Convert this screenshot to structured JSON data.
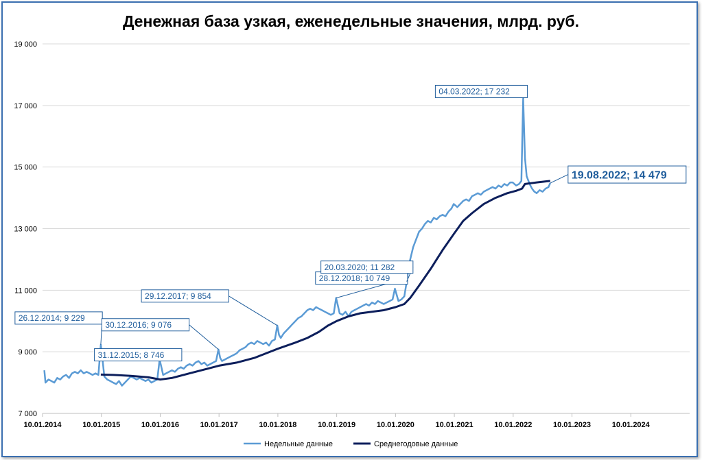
{
  "chart_data": {
    "type": "line",
    "title": "Денежная база узкая, еженедельные значения, млрд. руб.",
    "xlabel": "",
    "ylabel": "",
    "ylim": [
      7000,
      19000
    ],
    "yticks": [
      "7 000",
      "9 000",
      "11 000",
      "13 000",
      "15 000",
      "17 000",
      "19 000"
    ],
    "xticks": [
      "10.01.2014",
      "10.01.2015",
      "10.01.2016",
      "10.01.2017",
      "10.01.2018",
      "10.01.2019",
      "10.01.2020",
      "10.01.2021",
      "10.01.2022",
      "10.01.2023",
      "10.01.2024"
    ],
    "grid": true,
    "legend_position": "bottom",
    "series": [
      {
        "name": "Недельные данные",
        "color": "#5b9bd5",
        "points": [
          [
            2014.03,
            8400
          ],
          [
            2014.05,
            8000
          ],
          [
            2014.1,
            8100
          ],
          [
            2014.15,
            8050
          ],
          [
            2014.2,
            8000
          ],
          [
            2014.25,
            8150
          ],
          [
            2014.3,
            8100
          ],
          [
            2014.35,
            8200
          ],
          [
            2014.4,
            8250
          ],
          [
            2014.45,
            8150
          ],
          [
            2014.5,
            8300
          ],
          [
            2014.55,
            8350
          ],
          [
            2014.6,
            8300
          ],
          [
            2014.65,
            8400
          ],
          [
            2014.7,
            8300
          ],
          [
            2014.75,
            8350
          ],
          [
            2014.8,
            8300
          ],
          [
            2014.85,
            8250
          ],
          [
            2014.9,
            8300
          ],
          [
            2014.95,
            8250
          ],
          [
            2014.99,
            9229
          ],
          [
            2015.02,
            8750
          ],
          [
            2015.05,
            8200
          ],
          [
            2015.1,
            8100
          ],
          [
            2015.15,
            8050
          ],
          [
            2015.2,
            8000
          ],
          [
            2015.25,
            7950
          ],
          [
            2015.3,
            8050
          ],
          [
            2015.35,
            7900
          ],
          [
            2015.4,
            8000
          ],
          [
            2015.45,
            8100
          ],
          [
            2015.5,
            8200
          ],
          [
            2015.55,
            8150
          ],
          [
            2015.6,
            8100
          ],
          [
            2015.65,
            8150
          ],
          [
            2015.7,
            8100
          ],
          [
            2015.75,
            8050
          ],
          [
            2015.8,
            8100
          ],
          [
            2015.85,
            8000
          ],
          [
            2015.9,
            8050
          ],
          [
            2015.95,
            8100
          ],
          [
            2015.99,
            8746
          ],
          [
            2016.02,
            8500
          ],
          [
            2016.05,
            8250
          ],
          [
            2016.1,
            8300
          ],
          [
            2016.15,
            8350
          ],
          [
            2016.2,
            8400
          ],
          [
            2016.25,
            8350
          ],
          [
            2016.3,
            8450
          ],
          [
            2016.35,
            8500
          ],
          [
            2016.4,
            8450
          ],
          [
            2016.45,
            8550
          ],
          [
            2016.5,
            8600
          ],
          [
            2016.55,
            8550
          ],
          [
            2016.6,
            8650
          ],
          [
            2016.65,
            8700
          ],
          [
            2016.7,
            8600
          ],
          [
            2016.75,
            8650
          ],
          [
            2016.8,
            8550
          ],
          [
            2016.85,
            8600
          ],
          [
            2016.9,
            8650
          ],
          [
            2016.95,
            8700
          ],
          [
            2016.99,
            9076
          ],
          [
            2017.02,
            8800
          ],
          [
            2017.05,
            8700
          ],
          [
            2017.1,
            8750
          ],
          [
            2017.15,
            8800
          ],
          [
            2017.2,
            8850
          ],
          [
            2017.25,
            8900
          ],
          [
            2017.3,
            8950
          ],
          [
            2017.35,
            9050
          ],
          [
            2017.4,
            9100
          ],
          [
            2017.45,
            9150
          ],
          [
            2017.5,
            9250
          ],
          [
            2017.55,
            9300
          ],
          [
            2017.6,
            9250
          ],
          [
            2017.65,
            9350
          ],
          [
            2017.7,
            9300
          ],
          [
            2017.75,
            9250
          ],
          [
            2017.8,
            9300
          ],
          [
            2017.85,
            9200
          ],
          [
            2017.9,
            9350
          ],
          [
            2017.95,
            9400
          ],
          [
            2017.99,
            9854
          ],
          [
            2018.02,
            9550
          ],
          [
            2018.05,
            9450
          ],
          [
            2018.1,
            9600
          ],
          [
            2018.15,
            9700
          ],
          [
            2018.2,
            9800
          ],
          [
            2018.25,
            9900
          ],
          [
            2018.3,
            10000
          ],
          [
            2018.35,
            10100
          ],
          [
            2018.4,
            10150
          ],
          [
            2018.45,
            10250
          ],
          [
            2018.5,
            10350
          ],
          [
            2018.55,
            10400
          ],
          [
            2018.6,
            10350
          ],
          [
            2018.65,
            10450
          ],
          [
            2018.7,
            10400
          ],
          [
            2018.75,
            10350
          ],
          [
            2018.8,
            10300
          ],
          [
            2018.85,
            10250
          ],
          [
            2018.9,
            10200
          ],
          [
            2018.95,
            10250
          ],
          [
            2018.99,
            10749
          ],
          [
            2019.02,
            10500
          ],
          [
            2019.05,
            10250
          ],
          [
            2019.1,
            10200
          ],
          [
            2019.15,
            10300
          ],
          [
            2019.2,
            10150
          ],
          [
            2019.25,
            10300
          ],
          [
            2019.3,
            10350
          ],
          [
            2019.35,
            10400
          ],
          [
            2019.4,
            10450
          ],
          [
            2019.45,
            10500
          ],
          [
            2019.5,
            10550
          ],
          [
            2019.55,
            10500
          ],
          [
            2019.6,
            10600
          ],
          [
            2019.65,
            10550
          ],
          [
            2019.7,
            10650
          ],
          [
            2019.75,
            10600
          ],
          [
            2019.8,
            10550
          ],
          [
            2019.85,
            10600
          ],
          [
            2019.9,
            10650
          ],
          [
            2019.95,
            10700
          ],
          [
            2019.99,
            11050
          ],
          [
            2020.02,
            10850
          ],
          [
            2020.05,
            10650
          ],
          [
            2020.1,
            10700
          ],
          [
            2020.15,
            10800
          ],
          [
            2020.19,
            11282
          ],
          [
            2020.22,
            11700
          ],
          [
            2020.25,
            12000
          ],
          [
            2020.3,
            12400
          ],
          [
            2020.35,
            12650
          ],
          [
            2020.4,
            12900
          ],
          [
            2020.45,
            13000
          ],
          [
            2020.5,
            13150
          ],
          [
            2020.55,
            13250
          ],
          [
            2020.6,
            13200
          ],
          [
            2020.65,
            13350
          ],
          [
            2020.7,
            13300
          ],
          [
            2020.75,
            13400
          ],
          [
            2020.8,
            13450
          ],
          [
            2020.85,
            13400
          ],
          [
            2020.9,
            13550
          ],
          [
            2020.95,
            13650
          ],
          [
            2020.99,
            13800
          ],
          [
            2021.05,
            13700
          ],
          [
            2021.1,
            13800
          ],
          [
            2021.15,
            13900
          ],
          [
            2021.2,
            13950
          ],
          [
            2021.25,
            13900
          ],
          [
            2021.3,
            14050
          ],
          [
            2021.35,
            14100
          ],
          [
            2021.4,
            14150
          ],
          [
            2021.45,
            14100
          ],
          [
            2021.5,
            14200
          ],
          [
            2021.55,
            14250
          ],
          [
            2021.6,
            14300
          ],
          [
            2021.65,
            14350
          ],
          [
            2021.7,
            14300
          ],
          [
            2021.75,
            14400
          ],
          [
            2021.8,
            14350
          ],
          [
            2021.85,
            14450
          ],
          [
            2021.9,
            14400
          ],
          [
            2021.95,
            14500
          ],
          [
            2021.99,
            14500
          ],
          [
            2022.05,
            14400
          ],
          [
            2022.1,
            14450
          ],
          [
            2022.14,
            14550
          ],
          [
            2022.17,
            17232
          ],
          [
            2022.2,
            15300
          ],
          [
            2022.23,
            14700
          ],
          [
            2022.28,
            14450
          ],
          [
            2022.32,
            14300
          ],
          [
            2022.36,
            14200
          ],
          [
            2022.4,
            14150
          ],
          [
            2022.45,
            14250
          ],
          [
            2022.5,
            14200
          ],
          [
            2022.55,
            14300
          ],
          [
            2022.6,
            14350
          ],
          [
            2022.63,
            14479
          ]
        ]
      },
      {
        "name": "Среднегодовые данные",
        "color": "#0d1f5c",
        "points": [
          [
            2014.99,
            8260
          ],
          [
            2015.2,
            8250
          ],
          [
            2015.5,
            8220
          ],
          [
            2015.8,
            8170
          ],
          [
            2016.0,
            8100
          ],
          [
            2016.2,
            8150
          ],
          [
            2016.5,
            8300
          ],
          [
            2016.8,
            8450
          ],
          [
            2017.0,
            8550
          ],
          [
            2017.3,
            8650
          ],
          [
            2017.6,
            8800
          ],
          [
            2017.8,
            8950
          ],
          [
            2018.0,
            9100
          ],
          [
            2018.3,
            9300
          ],
          [
            2018.5,
            9450
          ],
          [
            2018.7,
            9650
          ],
          [
            2018.85,
            9850
          ],
          [
            2019.0,
            10000
          ],
          [
            2019.2,
            10150
          ],
          [
            2019.4,
            10250
          ],
          [
            2019.6,
            10300
          ],
          [
            2019.8,
            10350
          ],
          [
            2020.0,
            10450
          ],
          [
            2020.15,
            10550
          ],
          [
            2020.25,
            10750
          ],
          [
            2020.4,
            11150
          ],
          [
            2020.6,
            11700
          ],
          [
            2020.8,
            12300
          ],
          [
            2021.0,
            12850
          ],
          [
            2021.15,
            13250
          ],
          [
            2021.3,
            13500
          ],
          [
            2021.5,
            13800
          ],
          [
            2021.7,
            14000
          ],
          [
            2021.9,
            14150
          ],
          [
            2022.05,
            14230
          ],
          [
            2022.15,
            14300
          ],
          [
            2022.2,
            14450
          ],
          [
            2022.4,
            14500
          ],
          [
            2022.63,
            14550
          ]
        ]
      }
    ],
    "annotations": [
      {
        "label": "26.12.2014; 9 229",
        "x": 2014.99,
        "y": 9229,
        "big": false
      },
      {
        "label": "31.12.2015; 8 746",
        "x": 2015.99,
        "y": 8746,
        "big": false
      },
      {
        "label": "30.12.2016; 9 076",
        "x": 2016.99,
        "y": 9076,
        "big": false
      },
      {
        "label": "29.12.2017; 9 854",
        "x": 2017.99,
        "y": 9854,
        "big": false
      },
      {
        "label": "28.12.2018; 10 749",
        "x": 2018.99,
        "y": 10749,
        "big": false
      },
      {
        "label": "20.03.2020; 11 282",
        "x": 2020.19,
        "y": 11282,
        "big": false
      },
      {
        "label": "04.03.2022; 17 232",
        "x": 2022.17,
        "y": 17232,
        "big": false
      },
      {
        "label": "19.08.2022; 14 479",
        "x": 2022.63,
        "y": 14479,
        "big": true
      }
    ]
  }
}
